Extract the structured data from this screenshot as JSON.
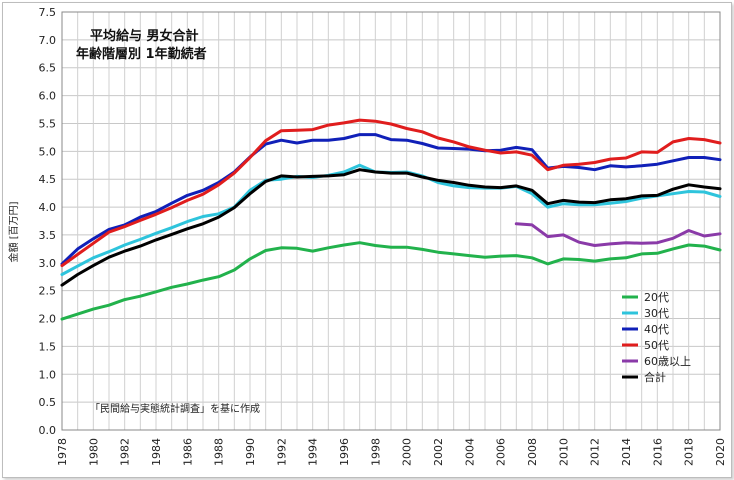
{
  "chart_data": {
    "type": "line",
    "title": [
      "平均給与 男女合計",
      "年齢階層別 1年勤続者"
    ],
    "ylabel": "金額 [百万円]",
    "note": "「民間給与実態統計調査」を基に作成",
    "ylim": [
      0,
      7.5
    ],
    "yticks": [
      "0.0",
      "0.5",
      "1.0",
      "1.5",
      "2.0",
      "2.5",
      "3.0",
      "3.5",
      "4.0",
      "4.5",
      "5.0",
      "5.5",
      "6.0",
      "6.5",
      "7.0",
      "7.5"
    ],
    "xlim": [
      1978,
      2020
    ],
    "xticks": [
      "1978",
      "1980",
      "1982",
      "1984",
      "1986",
      "1988",
      "1990",
      "1992",
      "1994",
      "1996",
      "1998",
      "2000",
      "2002",
      "2004",
      "2006",
      "2008",
      "2010",
      "2012",
      "2014",
      "2016",
      "2018",
      "2020"
    ],
    "grid": true,
    "legend": "bottom-right",
    "series": [
      {
        "name": "20代",
        "color": "#22b24c",
        "x": [
          1978,
          1979,
          1980,
          1981,
          1982,
          1983,
          1984,
          1985,
          1986,
          1987,
          1988,
          1989,
          1990,
          1991,
          1992,
          1993,
          1994,
          1995,
          1996,
          1997,
          1998,
          1999,
          2000,
          2001,
          2002,
          2003,
          2004,
          2005,
          2006,
          2007,
          2008,
          2009,
          2010,
          2011,
          2012,
          2013,
          2014,
          2015,
          2016,
          2017,
          2018,
          2019,
          2020
        ],
        "values": [
          1.99,
          2.08,
          2.17,
          2.24,
          2.34,
          2.4,
          2.48,
          2.56,
          2.62,
          2.69,
          2.75,
          2.87,
          3.07,
          3.22,
          3.27,
          3.26,
          3.21,
          3.27,
          3.32,
          3.36,
          3.31,
          3.28,
          3.28,
          3.24,
          3.19,
          3.16,
          3.13,
          3.1,
          3.12,
          3.13,
          3.09,
          2.98,
          3.07,
          3.06,
          3.03,
          3.07,
          3.09,
          3.16,
          3.17,
          3.25,
          3.32,
          3.3,
          3.23
        ]
      },
      {
        "name": "30代",
        "color": "#2ec4dc",
        "x": [
          1978,
          1979,
          1980,
          1981,
          1982,
          1983,
          1984,
          1985,
          1986,
          1987,
          1988,
          1989,
          1990,
          1991,
          1992,
          1993,
          1994,
          1995,
          1996,
          1997,
          1998,
          1999,
          2000,
          2001,
          2002,
          2003,
          2004,
          2005,
          2006,
          2007,
          2008,
          2009,
          2010,
          2011,
          2012,
          2013,
          2014,
          2015,
          2016,
          2017,
          2018,
          2019,
          2020
        ],
        "values": [
          2.79,
          2.94,
          3.09,
          3.2,
          3.32,
          3.42,
          3.53,
          3.63,
          3.74,
          3.83,
          3.88,
          4.0,
          4.3,
          4.48,
          4.5,
          4.55,
          4.53,
          4.57,
          4.63,
          4.75,
          4.63,
          4.62,
          4.63,
          4.56,
          4.44,
          4.38,
          4.35,
          4.34,
          4.34,
          4.37,
          4.24,
          4.0,
          4.06,
          4.04,
          4.04,
          4.07,
          4.1,
          4.16,
          4.2,
          4.24,
          4.28,
          4.27,
          4.19
        ]
      },
      {
        "name": "40代",
        "color": "#1020b8",
        "x": [
          1978,
          1979,
          1980,
          1981,
          1982,
          1983,
          1984,
          1985,
          1986,
          1987,
          1988,
          1989,
          1990,
          1991,
          1992,
          1993,
          1994,
          1995,
          1996,
          1997,
          1998,
          1999,
          2000,
          2001,
          2002,
          2003,
          2004,
          2005,
          2006,
          2007,
          2008,
          2009,
          2010,
          2011,
          2012,
          2013,
          2014,
          2015,
          2016,
          2017,
          2018,
          2019,
          2020
        ],
        "values": [
          2.98,
          3.25,
          3.43,
          3.6,
          3.68,
          3.82,
          3.92,
          4.07,
          4.21,
          4.3,
          4.44,
          4.63,
          4.9,
          5.13,
          5.2,
          5.15,
          5.2,
          5.2,
          5.23,
          5.3,
          5.3,
          5.21,
          5.2,
          5.14,
          5.06,
          5.05,
          5.04,
          5.01,
          5.02,
          5.07,
          5.03,
          4.7,
          4.73,
          4.71,
          4.67,
          4.74,
          4.72,
          4.74,
          4.77,
          4.83,
          4.89,
          4.89,
          4.85
        ]
      },
      {
        "name": "50代",
        "color": "#e01d1d",
        "x": [
          1978,
          1979,
          1980,
          1981,
          1982,
          1983,
          1984,
          1985,
          1986,
          1987,
          1988,
          1989,
          1990,
          1991,
          1992,
          1993,
          1994,
          1995,
          1996,
          1997,
          1998,
          1999,
          2000,
          2001,
          2002,
          2003,
          2004,
          2005,
          2006,
          2007,
          2008,
          2009,
          2010,
          2011,
          2012,
          2013,
          2014,
          2015,
          2016,
          2017,
          2018,
          2019,
          2020
        ],
        "values": [
          2.95,
          3.15,
          3.35,
          3.55,
          3.65,
          3.76,
          3.87,
          3.99,
          4.12,
          4.23,
          4.4,
          4.61,
          4.89,
          5.19,
          5.37,
          5.38,
          5.39,
          5.47,
          5.51,
          5.56,
          5.54,
          5.49,
          5.41,
          5.35,
          5.24,
          5.17,
          5.08,
          5.02,
          4.97,
          4.99,
          4.93,
          4.67,
          4.75,
          4.77,
          4.8,
          4.86,
          4.88,
          4.99,
          4.98,
          5.17,
          5.23,
          5.21,
          5.15
        ]
      },
      {
        "name": "60歳以上",
        "color": "#8a3aa8",
        "x": [
          2007,
          2008,
          2009,
          2010,
          2011,
          2012,
          2013,
          2014,
          2015,
          2016,
          2017,
          2018,
          2019,
          2020
        ],
        "values": [
          3.7,
          3.68,
          3.47,
          3.5,
          3.37,
          3.31,
          3.34,
          3.36,
          3.35,
          3.36,
          3.44,
          3.58,
          3.48,
          3.52
        ]
      },
      {
        "name": "合計",
        "color": "#000000",
        "x": [
          1978,
          1979,
          1980,
          1981,
          1982,
          1983,
          1984,
          1985,
          1986,
          1987,
          1988,
          1989,
          1990,
          1991,
          1992,
          1993,
          1994,
          1995,
          1996,
          1997,
          1998,
          1999,
          2000,
          2001,
          2002,
          2003,
          2004,
          2005,
          2006,
          2007,
          2008,
          2009,
          2010,
          2011,
          2012,
          2013,
          2014,
          2015,
          2016,
          2017,
          2018,
          2019,
          2020
        ],
        "values": [
          2.6,
          2.79,
          2.95,
          3.1,
          3.21,
          3.3,
          3.41,
          3.51,
          3.61,
          3.7,
          3.82,
          3.99,
          4.24,
          4.46,
          4.56,
          4.54,
          4.55,
          4.56,
          4.58,
          4.67,
          4.63,
          4.61,
          4.61,
          4.54,
          4.48,
          4.44,
          4.39,
          4.36,
          4.35,
          4.38,
          4.3,
          4.06,
          4.12,
          4.09,
          4.08,
          4.13,
          4.15,
          4.2,
          4.21,
          4.32,
          4.4,
          4.36,
          4.33
        ]
      }
    ]
  }
}
